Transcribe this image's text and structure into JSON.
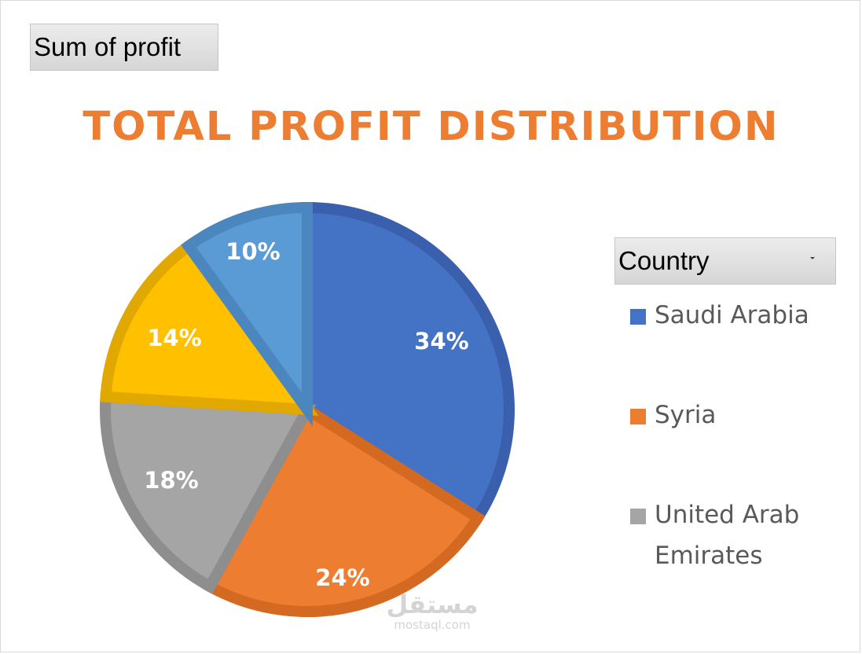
{
  "field_button": {
    "label": "Sum of profit"
  },
  "chart_data": {
    "type": "pie",
    "title": "TOTAL PROFIT DISTRIBUTION",
    "legend_title": "Country",
    "legend_position": "right",
    "slices": [
      {
        "name": "Saudi Arabia",
        "value": 34,
        "label": "34%",
        "color": "#4472c4",
        "edge": "#3a60ad"
      },
      {
        "name": "Syria",
        "value": 24,
        "label": "24%",
        "color": "#ed7d31",
        "edge": "#d46a22"
      },
      {
        "name": "United Arab Emirates",
        "value": 18,
        "label": "18%",
        "color": "#a5a5a5",
        "edge": "#8e8e8e"
      },
      {
        "name": "",
        "value": 14,
        "label": "14%",
        "color": "#ffc000",
        "edge": "#e0a800"
      },
      {
        "name": "",
        "value": 10,
        "label": "10%",
        "color": "#5b9bd5",
        "edge": "#4b86bf"
      }
    ]
  },
  "legend": {
    "items": [
      {
        "label": "Saudi Arabia",
        "color": "#4472c4"
      },
      {
        "label": "Syria",
        "color": "#ed7d31"
      },
      {
        "label": "United Arab Emirates",
        "color": "#a5a5a5"
      }
    ]
  },
  "watermark": {
    "arabic": "مستقل",
    "latin": "mostaql.com"
  }
}
